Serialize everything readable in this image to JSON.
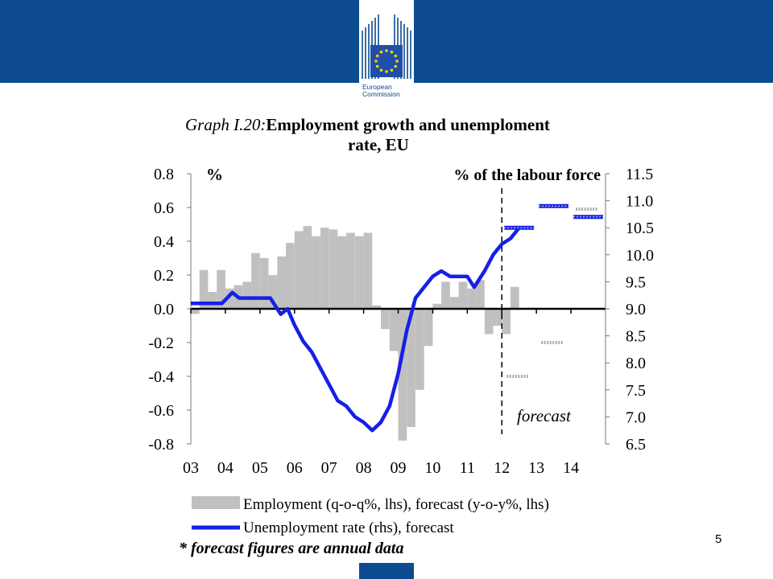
{
  "header": {
    "logo_name": "European Commission",
    "logo_line1": "European",
    "logo_line2": "Commission"
  },
  "page_number": "5",
  "colors": {
    "header_blue": "#0c4b8f",
    "employment_bar": "#c0c0c0",
    "unemployment_line": "#1520e6",
    "eu_flag_blue": "#1f4fa8",
    "eu_star": "#ffd200"
  },
  "chart_data": {
    "type": "bar+line",
    "title_prefix": "Graph I.20:",
    "title_line1": "Employment growth and unemploment",
    "title_line2": "rate, EU",
    "left_axis_unit": "%",
    "right_axis_unit": "% of the labour force",
    "ylim_left": [
      -0.8,
      0.8
    ],
    "ylim_right": [
      6.5,
      11.5
    ],
    "left_ticks": [
      "0.8",
      "0.6",
      "0.4",
      "0.2",
      "0.0",
      "-0.2",
      "-0.4",
      "-0.6",
      "-0.8"
    ],
    "right_ticks": [
      "11.5",
      "11.0",
      "10.5",
      "10.0",
      "9.5",
      "9.0",
      "8.5",
      "8.0",
      "7.5",
      "7.0",
      "6.5"
    ],
    "x_ticks": [
      "03",
      "04",
      "05",
      "06",
      "07",
      "08",
      "09",
      "10",
      "11",
      "12",
      "13",
      "14"
    ],
    "forecast_label": "forecast",
    "forecast_start": 2012,
    "employment_quarterly": [
      {
        "t": 2003.0,
        "v": -0.03
      },
      {
        "t": 2003.25,
        "v": 0.23
      },
      {
        "t": 2003.5,
        "v": 0.1
      },
      {
        "t": 2003.75,
        "v": 0.23
      },
      {
        "t": 2004.0,
        "v": 0.12
      },
      {
        "t": 2004.25,
        "v": 0.14
      },
      {
        "t": 2004.5,
        "v": 0.16
      },
      {
        "t": 2004.75,
        "v": 0.33
      },
      {
        "t": 2005.0,
        "v": 0.3
      },
      {
        "t": 2005.25,
        "v": 0.2
      },
      {
        "t": 2005.5,
        "v": 0.31
      },
      {
        "t": 2005.75,
        "v": 0.39
      },
      {
        "t": 2006.0,
        "v": 0.46
      },
      {
        "t": 2006.25,
        "v": 0.49
      },
      {
        "t": 2006.5,
        "v": 0.43
      },
      {
        "t": 2006.75,
        "v": 0.48
      },
      {
        "t": 2007.0,
        "v": 0.47
      },
      {
        "t": 2007.25,
        "v": 0.43
      },
      {
        "t": 2007.5,
        "v": 0.45
      },
      {
        "t": 2007.75,
        "v": 0.43
      },
      {
        "t": 2008.0,
        "v": 0.45
      },
      {
        "t": 2008.25,
        "v": 0.02
      },
      {
        "t": 2008.5,
        "v": -0.12
      },
      {
        "t": 2008.75,
        "v": -0.25
      },
      {
        "t": 2009.0,
        "v": -0.78
      },
      {
        "t": 2009.25,
        "v": -0.7
      },
      {
        "t": 2009.5,
        "v": -0.48
      },
      {
        "t": 2009.75,
        "v": -0.22
      },
      {
        "t": 2010.0,
        "v": 0.03
      },
      {
        "t": 2010.25,
        "v": 0.16
      },
      {
        "t": 2010.5,
        "v": 0.07
      },
      {
        "t": 2010.75,
        "v": 0.16
      },
      {
        "t": 2011.0,
        "v": 0.12
      },
      {
        "t": 2011.25,
        "v": 0.17
      },
      {
        "t": 2011.5,
        "v": -0.15
      },
      {
        "t": 2011.75,
        "v": -0.1
      },
      {
        "t": 2012.0,
        "v": -0.15
      },
      {
        "t": 2012.25,
        "v": 0.13
      }
    ],
    "employment_forecast_annual": [
      {
        "t0": 2012.0,
        "t1": 2013.0,
        "v": -0.4
      },
      {
        "t0": 2013.0,
        "t1": 2014.0,
        "v": -0.2
      },
      {
        "t0": 2014.0,
        "t1": 2015.0,
        "v": 0.59
      }
    ],
    "unemployment_monthly": [
      {
        "t": 2003.0,
        "v": 9.1
      },
      {
        "t": 2003.9,
        "v": 9.1
      },
      {
        "t": 2004.2,
        "v": 9.3
      },
      {
        "t": 2004.4,
        "v": 9.2
      },
      {
        "t": 2005.3,
        "v": 9.2
      },
      {
        "t": 2005.6,
        "v": 8.9
      },
      {
        "t": 2005.8,
        "v": 9.0
      },
      {
        "t": 2006.0,
        "v": 8.7
      },
      {
        "t": 2006.25,
        "v": 8.4
      },
      {
        "t": 2006.5,
        "v": 8.2
      },
      {
        "t": 2006.75,
        "v": 7.9
      },
      {
        "t": 2007.0,
        "v": 7.6
      },
      {
        "t": 2007.25,
        "v": 7.3
      },
      {
        "t": 2007.5,
        "v": 7.2
      },
      {
        "t": 2007.75,
        "v": 7.0
      },
      {
        "t": 2008.0,
        "v": 6.9
      },
      {
        "t": 2008.25,
        "v": 6.75
      },
      {
        "t": 2008.5,
        "v": 6.9
      },
      {
        "t": 2008.75,
        "v": 7.2
      },
      {
        "t": 2009.0,
        "v": 7.8
      },
      {
        "t": 2009.25,
        "v": 8.6
      },
      {
        "t": 2009.5,
        "v": 9.2
      },
      {
        "t": 2009.75,
        "v": 9.4
      },
      {
        "t": 2010.0,
        "v": 9.6
      },
      {
        "t": 2010.25,
        "v": 9.7
      },
      {
        "t": 2010.5,
        "v": 9.6
      },
      {
        "t": 2011.0,
        "v": 9.6
      },
      {
        "t": 2011.2,
        "v": 9.4
      },
      {
        "t": 2011.5,
        "v": 9.7
      },
      {
        "t": 2011.75,
        "v": 10.0
      },
      {
        "t": 2012.0,
        "v": 10.2
      },
      {
        "t": 2012.25,
        "v": 10.3
      },
      {
        "t": 2012.5,
        "v": 10.5
      }
    ],
    "unemployment_forecast_annual": [
      {
        "t0": 2012.0,
        "t1": 2013.0,
        "v": 10.5
      },
      {
        "t0": 2013.0,
        "t1": 2014.0,
        "v": 10.9
      },
      {
        "t0": 2014.0,
        "t1": 2015.0,
        "v": 10.7
      }
    ],
    "legend": [
      {
        "label": "Employment (q-o-q%, lhs), forecast (y-o-y%, lhs)",
        "type": "bar"
      },
      {
        "label": "Unemployment rate (rhs), forecast",
        "type": "line"
      }
    ],
    "footnote": "* forecast figures are annual data"
  }
}
